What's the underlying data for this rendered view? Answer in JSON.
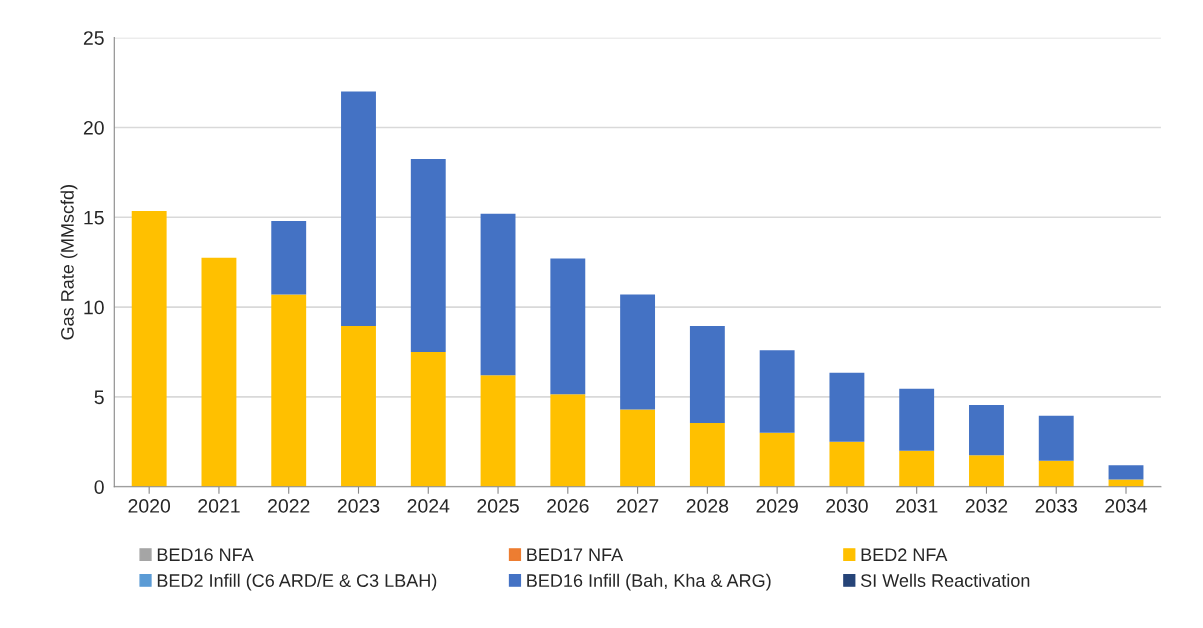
{
  "chart_data": {
    "type": "bar",
    "stacked": true,
    "ylabel": "Gas Rate (MMscfd)",
    "categories": [
      "2020",
      "2021",
      "2022",
      "2023",
      "2024",
      "2025",
      "2026",
      "2027",
      "2028",
      "2029",
      "2030",
      "2031",
      "2032",
      "2033",
      "2034"
    ],
    "series": [
      {
        "name": "BED16 NFA",
        "color": "#a5a5a5",
        "values": [
          null,
          null,
          null,
          null,
          null,
          null,
          null,
          null,
          null,
          null,
          null,
          null,
          null,
          null,
          null
        ]
      },
      {
        "name": "BED17 NFA",
        "color": "#ed7d31",
        "values": [
          null,
          null,
          null,
          null,
          null,
          null,
          null,
          null,
          null,
          null,
          null,
          null,
          null,
          null,
          null
        ]
      },
      {
        "name": "BED2 NFA",
        "color": "#ffc000",
        "values": [
          15.35,
          12.75,
          10.7,
          8.95,
          7.5,
          6.2,
          5.15,
          4.3,
          3.55,
          3.0,
          2.5,
          2.0,
          1.75,
          1.45,
          0.4
        ]
      },
      {
        "name": "BED2 Infill (C6 ARD/E & C3 LBAH)",
        "color": "#5b9bd5",
        "values": [
          null,
          null,
          null,
          null,
          null,
          null,
          null,
          null,
          null,
          null,
          null,
          null,
          null,
          null,
          null
        ]
      },
      {
        "name": "BED16 Infill (Bah, Kha & ARG)",
        "color": "#4472c4",
        "values": [
          null,
          null,
          4.1,
          13.05,
          10.75,
          9.0,
          7.55,
          6.4,
          5.4,
          4.6,
          3.85,
          3.45,
          2.8,
          2.5,
          0.8
        ]
      },
      {
        "name": "SI Wells Reactivation",
        "color": "#264478",
        "values": [
          null,
          null,
          null,
          null,
          null,
          null,
          null,
          null,
          null,
          null,
          null,
          null,
          null,
          null,
          null
        ]
      }
    ],
    "ylim": [
      0,
      25
    ],
    "yticks": [
      0,
      5,
      10,
      15,
      20,
      25
    ],
    "grid": "y",
    "legend": "bottom"
  }
}
